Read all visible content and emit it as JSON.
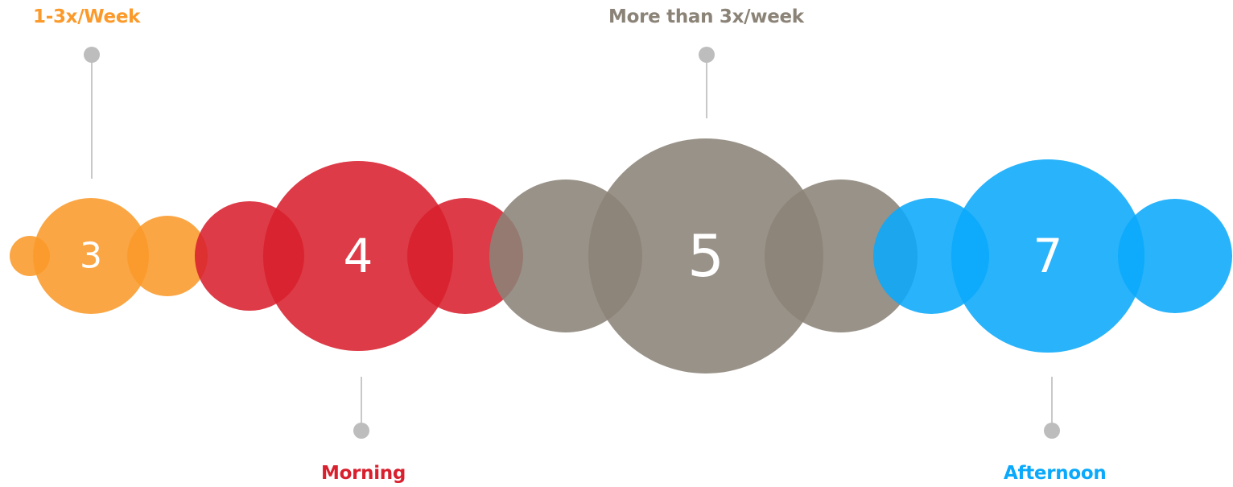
{
  "groups": [
    {
      "value": "3",
      "label": "1-3x/Week",
      "color": "#fb9a2a",
      "callout": "top"
    },
    {
      "value": "4",
      "label": "Morning",
      "color": "#d8202e",
      "callout": "bottom"
    },
    {
      "value": "5",
      "label": "More than 3x/week",
      "color": "#8b8377",
      "callout": "top"
    },
    {
      "value": "7",
      "label": "Afternoon",
      "color": "#0aa9fb",
      "callout": "bottom"
    }
  ],
  "connector_color": "#c8c8c8",
  "dot_color": "#bdbdbd"
}
